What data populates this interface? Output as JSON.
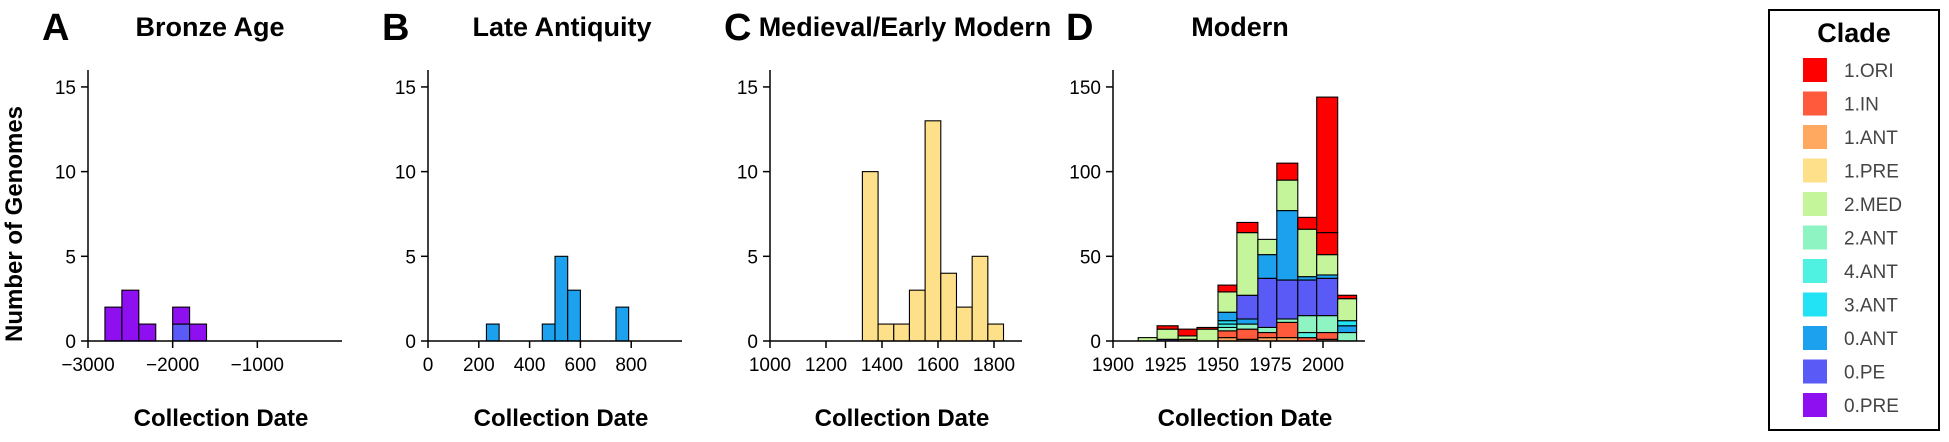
{
  "ylabel_shared": "Number of Genomes",
  "legend": {
    "title": "Clade",
    "items": [
      {
        "label": "1.ORI",
        "color": "#ff0000"
      },
      {
        "label": "1.IN",
        "color": "#ff5a3c"
      },
      {
        "label": "1.ANT",
        "color": "#ffa860"
      },
      {
        "label": "1.PRE",
        "color": "#ffe08a"
      },
      {
        "label": "2.MED",
        "color": "#c4f59a"
      },
      {
        "label": "2.ANT",
        "color": "#8ef5c2"
      },
      {
        "label": "4.ANT",
        "color": "#4ff2e0"
      },
      {
        "label": "3.ANT",
        "color": "#22e3f5"
      },
      {
        "label": "0.ANT",
        "color": "#1ba1ee"
      },
      {
        "label": "0.PE",
        "color": "#5a5af7"
      },
      {
        "label": "0.PRE",
        "color": "#8e0ff0"
      }
    ]
  },
  "chart_data": [
    {
      "type": "bar",
      "panel": "A",
      "title": "Bronze Age",
      "xlabel": "Collection Date",
      "ylabel": "Number of Genomes",
      "xlim": [
        -3000,
        0
      ],
      "ylim": [
        0,
        16
      ],
      "xticks": [
        -3000,
        -2000,
        -1000
      ],
      "xtick_labels": [
        "−3000",
        "−2000",
        "−1000"
      ],
      "yticks": [
        0,
        5,
        10,
        15
      ],
      "bins": [
        {
          "x0": -2800,
          "x1": -2600,
          "segments": [
            {
              "clade": "0.PRE",
              "count": 2
            }
          ]
        },
        {
          "x0": -2600,
          "x1": -2400,
          "segments": [
            {
              "clade": "0.PRE",
              "count": 3
            }
          ]
        },
        {
          "x0": -2400,
          "x1": -2200,
          "segments": [
            {
              "clade": "0.PRE",
              "count": 1
            }
          ]
        },
        {
          "x0": -2000,
          "x1": -1800,
          "segments": [
            {
              "clade": "0.PE",
              "count": 1
            },
            {
              "clade": "0.PRE",
              "count": 1
            }
          ]
        },
        {
          "x0": -1800,
          "x1": -1600,
          "segments": [
            {
              "clade": "0.PRE",
              "count": 1
            }
          ]
        }
      ]
    },
    {
      "type": "bar",
      "panel": "B",
      "title": "Late Antiquity",
      "xlabel": "Collection Date",
      "xlim": [
        0,
        1000
      ],
      "ylim": [
        0,
        16
      ],
      "xticks": [
        0,
        200,
        400,
        600,
        800
      ],
      "xtick_labels": [
        "0",
        "200",
        "400",
        "600",
        "800"
      ],
      "yticks": [
        0,
        5,
        10,
        15
      ],
      "bins": [
        {
          "x0": 230,
          "x1": 280,
          "segments": [
            {
              "clade": "0.ANT",
              "count": 1
            }
          ]
        },
        {
          "x0": 450,
          "x1": 500,
          "segments": [
            {
              "clade": "0.ANT",
              "count": 1
            }
          ]
        },
        {
          "x0": 500,
          "x1": 550,
          "segments": [
            {
              "clade": "0.ANT",
              "count": 5
            }
          ]
        },
        {
          "x0": 550,
          "x1": 600,
          "segments": [
            {
              "clade": "0.ANT",
              "count": 3
            }
          ]
        },
        {
          "x0": 740,
          "x1": 790,
          "segments": [
            {
              "clade": "0.ANT",
              "count": 2
            }
          ]
        }
      ]
    },
    {
      "type": "bar",
      "panel": "C",
      "title": "Medieval/Early Modern",
      "xlabel": "Collection Date",
      "xlim": [
        1000,
        1900
      ],
      "ylim": [
        0,
        16
      ],
      "xticks": [
        1000,
        1200,
        1400,
        1600,
        1800
      ],
      "xtick_labels": [
        "1000",
        "1200",
        "1400",
        "1600",
        "1800"
      ],
      "yticks": [
        0,
        5,
        10,
        15
      ],
      "bins": [
        {
          "x0": 1330,
          "x1": 1386,
          "segments": [
            {
              "clade": "1.PRE",
              "count": 10
            }
          ]
        },
        {
          "x0": 1386,
          "x1": 1442,
          "segments": [
            {
              "clade": "1.PRE",
              "count": 1
            }
          ]
        },
        {
          "x0": 1442,
          "x1": 1498,
          "segments": [
            {
              "clade": "1.PRE",
              "count": 1
            }
          ]
        },
        {
          "x0": 1498,
          "x1": 1554,
          "segments": [
            {
              "clade": "1.PRE",
              "count": 3
            }
          ]
        },
        {
          "x0": 1554,
          "x1": 1610,
          "segments": [
            {
              "clade": "1.PRE",
              "count": 13
            }
          ]
        },
        {
          "x0": 1610,
          "x1": 1666,
          "segments": [
            {
              "clade": "1.PRE",
              "count": 4
            }
          ]
        },
        {
          "x0": 1666,
          "x1": 1722,
          "segments": [
            {
              "clade": "1.PRE",
              "count": 2
            }
          ]
        },
        {
          "x0": 1722,
          "x1": 1778,
          "segments": [
            {
              "clade": "1.PRE",
              "count": 5
            }
          ]
        },
        {
          "x0": 1778,
          "x1": 1834,
          "segments": [
            {
              "clade": "1.PRE",
              "count": 1
            }
          ]
        }
      ]
    },
    {
      "type": "bar",
      "panel": "D",
      "title": "Modern",
      "xlabel": "Collection Date",
      "xlim": [
        1900,
        2020
      ],
      "ylim": [
        0,
        160
      ],
      "xticks": [
        1900,
        1925,
        1950,
        1975,
        2000
      ],
      "xtick_labels": [
        "1900",
        "1925",
        "1950",
        "1975",
        "2000"
      ],
      "yticks": [
        0,
        50,
        100,
        150
      ],
      "bins": [
        {
          "x0": 1912,
          "x1": 1921,
          "segments": [
            {
              "clade": "2.MED",
              "count": 2
            }
          ]
        },
        {
          "x0": 1921,
          "x1": 1931,
          "segments": [
            {
              "clade": "0.PE",
              "count": 1
            },
            {
              "clade": "2.MED",
              "count": 6
            },
            {
              "clade": "1.ORI",
              "count": 2
            }
          ]
        },
        {
          "x0": 1931,
          "x1": 1940,
          "segments": [
            {
              "clade": "1.ANT",
              "count": 1
            },
            {
              "clade": "2.MED",
              "count": 2
            },
            {
              "clade": "1.ORI",
              "count": 4
            }
          ]
        },
        {
          "x0": 1940,
          "x1": 1950,
          "segments": [
            {
              "clade": "2.MED",
              "count": 7
            },
            {
              "clade": "1.ORI",
              "count": 1
            }
          ]
        },
        {
          "x0": 1950,
          "x1": 1959,
          "segments": [
            {
              "clade": "1.ANT",
              "count": 2
            },
            {
              "clade": "1.IN",
              "count": 4
            },
            {
              "clade": "2.ANT",
              "count": 2
            },
            {
              "clade": "4.ANT",
              "count": 2
            },
            {
              "clade": "3.ANT",
              "count": 2
            },
            {
              "clade": "0.ANT",
              "count": 5
            },
            {
              "clade": "2.MED",
              "count": 12
            },
            {
              "clade": "1.ORI",
              "count": 4
            }
          ]
        },
        {
          "x0": 1959,
          "x1": 1969,
          "segments": [
            {
              "clade": "1.ANT",
              "count": 1
            },
            {
              "clade": "1.IN",
              "count": 6
            },
            {
              "clade": "2.ANT",
              "count": 3
            },
            {
              "clade": "0.ANT",
              "count": 3
            },
            {
              "clade": "0.PE",
              "count": 14
            },
            {
              "clade": "2.MED",
              "count": 37
            },
            {
              "clade": "1.ORI",
              "count": 6
            }
          ]
        },
        {
          "x0": 1969,
          "x1": 1978,
          "segments": [
            {
              "clade": "1.ANT",
              "count": 2
            },
            {
              "clade": "1.IN",
              "count": 3
            },
            {
              "clade": "2.ANT",
              "count": 3
            },
            {
              "clade": "0.PE",
              "count": 29
            },
            {
              "clade": "0.ANT",
              "count": 14
            },
            {
              "clade": "2.MED",
              "count": 9
            }
          ]
        },
        {
          "x0": 1978,
          "x1": 1988,
          "segments": [
            {
              "clade": "1.ANT",
              "count": 2
            },
            {
              "clade": "1.IN",
              "count": 9
            },
            {
              "clade": "2.ANT",
              "count": 2
            },
            {
              "clade": "0.PE",
              "count": 23
            },
            {
              "clade": "0.ANT",
              "count": 41
            },
            {
              "clade": "2.MED",
              "count": 18
            },
            {
              "clade": "1.ORI",
              "count": 10
            }
          ]
        },
        {
          "x0": 1988,
          "x1": 1997,
          "segments": [
            {
              "clade": "1.IN",
              "count": 2
            },
            {
              "clade": "4.ANT",
              "count": 3
            },
            {
              "clade": "2.ANT",
              "count": 10
            },
            {
              "clade": "0.PE",
              "count": 21
            },
            {
              "clade": "0.ANT",
              "count": 2
            },
            {
              "clade": "2.MED",
              "count": 28
            },
            {
              "clade": "1.ORI",
              "count": 7
            }
          ]
        },
        {
          "x0": 1997,
          "x1": 2007,
          "segments": [
            {
              "clade": "1.ANT",
              "count": 1
            },
            {
              "clade": "1.IN",
              "count": 4
            },
            {
              "clade": "2.ANT",
              "count": 10
            },
            {
              "clade": "0.PE",
              "count": 22
            },
            {
              "clade": "0.ANT",
              "count": 2
            },
            {
              "clade": "2.MED",
              "count": 12
            },
            {
              "clade": "1.ORI",
              "count": 13
            },
            {
              "clade": "1.PRE",
              "count": 0
            },
            {
              "clade": "1.ORI",
              "count": 80
            }
          ]
        },
        {
          "x0": 2007,
          "x1": 2016,
          "segments": [
            {
              "clade": "2.ANT",
              "count": 5
            },
            {
              "clade": "0.ANT",
              "count": 4
            },
            {
              "clade": "3.ANT",
              "count": 3
            },
            {
              "clade": "2.MED",
              "count": 13
            },
            {
              "clade": "1.ORI",
              "count": 2
            }
          ]
        }
      ]
    }
  ]
}
